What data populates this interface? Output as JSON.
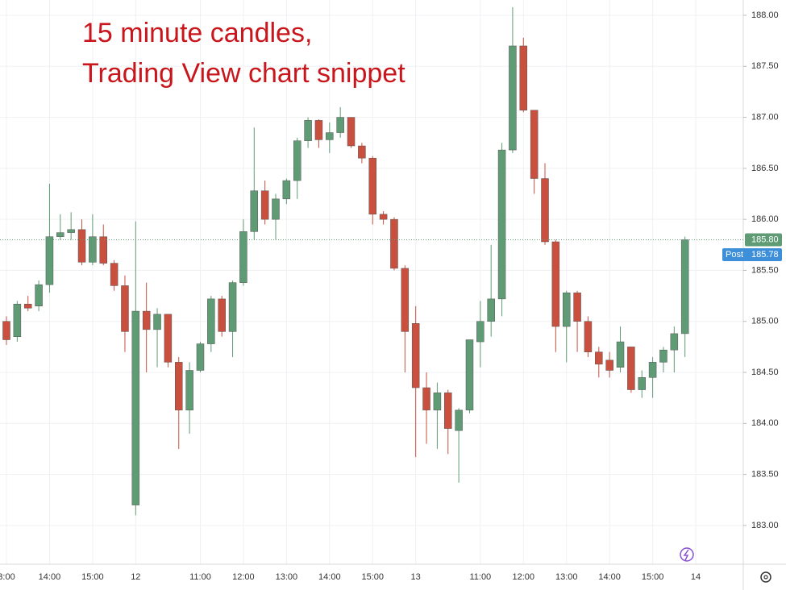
{
  "chart_data": {
    "type": "candlestick",
    "annotations": [
      "15 minute candles,",
      "Trading View chart snippet"
    ],
    "categories": [
      "3:00",
      null,
      null,
      null,
      "14:00",
      null,
      null,
      null,
      "15:00",
      null,
      null,
      null,
      "12",
      null,
      null,
      null,
      null,
      null,
      "11:00",
      null,
      null,
      null,
      "12:00",
      null,
      null,
      null,
      "13:00",
      null,
      null,
      null,
      "14:00",
      null,
      null,
      null,
      "15:00",
      null,
      null,
      null,
      "13",
      null,
      null,
      null,
      null,
      null,
      "11:00",
      null,
      null,
      null,
      "12:00",
      null,
      null,
      null,
      "13:00",
      null,
      null,
      null,
      "14:00",
      null,
      null,
      null,
      "15:00",
      null,
      null,
      null,
      "14"
    ],
    "open": [
      185.0,
      184.85,
      185.17,
      185.15,
      185.36,
      185.83,
      185.87,
      185.9,
      185.58,
      185.83,
      185.57,
      185.35,
      183.2,
      185.1,
      184.92,
      185.07,
      184.6,
      184.13,
      184.52,
      184.78,
      185.22,
      184.9,
      185.38,
      185.88,
      186.28,
      186.0,
      186.2,
      186.38,
      186.77,
      186.97,
      186.78,
      186.85,
      187.0,
      186.72,
      186.6,
      186.05,
      186.0,
      185.52,
      184.98,
      184.35,
      184.13,
      184.3,
      183.93,
      184.13,
      184.8,
      185.0,
      185.22,
      186.68,
      187.7,
      187.07,
      186.4,
      185.78,
      184.95,
      185.28,
      185.0,
      184.7,
      184.62,
      184.55,
      184.75,
      184.33,
      184.45,
      184.6,
      184.72,
      184.88,
      null
    ],
    "high": [
      185.05,
      185.2,
      185.25,
      185.4,
      186.35,
      186.05,
      186.07,
      186.0,
      186.05,
      185.95,
      185.6,
      185.45,
      185.98,
      185.38,
      185.13,
      185.07,
      184.65,
      184.6,
      184.8,
      185.25,
      185.25,
      185.4,
      186.0,
      186.9,
      186.38,
      186.25,
      186.4,
      186.8,
      187.0,
      186.98,
      186.95,
      187.1,
      187.0,
      186.75,
      186.62,
      186.08,
      186.02,
      185.55,
      185.15,
      184.5,
      184.4,
      184.33,
      184.15,
      184.82,
      185.2,
      185.75,
      186.75,
      188.08,
      187.78,
      187.07,
      186.55,
      185.8,
      185.3,
      185.3,
      185.05,
      184.75,
      184.7,
      184.95,
      184.75,
      184.52,
      184.65,
      184.75,
      184.95,
      185.83,
      null
    ],
    "low": [
      184.77,
      184.8,
      185.1,
      185.1,
      185.28,
      185.8,
      185.8,
      185.55,
      185.55,
      185.55,
      185.3,
      184.7,
      183.1,
      184.5,
      184.55,
      184.55,
      183.75,
      183.9,
      184.5,
      184.7,
      184.85,
      184.65,
      185.35,
      185.8,
      185.95,
      185.8,
      186.15,
      186.2,
      186.7,
      186.7,
      186.65,
      186.8,
      186.7,
      186.55,
      185.95,
      185.95,
      185.5,
      184.5,
      183.67,
      183.8,
      183.75,
      183.7,
      183.42,
      184.1,
      184.55,
      184.85,
      185.05,
      186.65,
      187.05,
      186.25,
      185.75,
      184.7,
      184.6,
      184.7,
      184.65,
      184.45,
      184.45,
      184.5,
      184.3,
      184.25,
      184.25,
      184.5,
      184.5,
      184.65,
      null
    ],
    "close": [
      184.82,
      185.17,
      185.13,
      185.36,
      185.83,
      185.87,
      185.9,
      185.58,
      185.83,
      185.57,
      185.35,
      184.9,
      185.1,
      184.92,
      185.07,
      184.6,
      184.13,
      184.52,
      184.78,
      185.22,
      184.9,
      185.38,
      185.88,
      186.28,
      186.0,
      186.2,
      186.38,
      186.77,
      186.97,
      186.78,
      186.85,
      187.0,
      186.72,
      186.6,
      186.05,
      186.0,
      185.52,
      184.9,
      184.35,
      184.13,
      184.3,
      183.95,
      184.13,
      184.82,
      185.0,
      185.22,
      186.68,
      187.7,
      187.07,
      186.4,
      185.78,
      184.95,
      185.28,
      185.0,
      184.7,
      184.58,
      184.52,
      184.8,
      184.33,
      184.45,
      184.6,
      184.72,
      184.88,
      185.8,
      null
    ],
    "up_color": "#5f9b75",
    "down_color": "#c9503e",
    "ylim": [
      182.62,
      188.15
    ],
    "yticks": [
      {
        "value": 183,
        "label": "183.00"
      },
      {
        "value": 183.5,
        "label": "183.50"
      },
      {
        "value": 184,
        "label": "184.00"
      },
      {
        "value": 184.5,
        "label": "184.50"
      },
      {
        "value": 185,
        "label": "185.00"
      },
      {
        "value": 185.5,
        "label": "185.50"
      },
      {
        "value": 186,
        "label": "186.00"
      },
      {
        "value": 186.5,
        "label": "186.50"
      },
      {
        "value": 187,
        "label": "187.00"
      },
      {
        "value": 187.5,
        "label": "187.50"
      },
      {
        "value": 188,
        "label": "188.00"
      }
    ],
    "grid": true,
    "last_price": {
      "value": 185.8,
      "label": "185.80",
      "color": "#5f9b75"
    },
    "post_price": {
      "name": "Post",
      "value": 185.78,
      "label": "185.78",
      "color": "#3d8fd9"
    }
  }
}
